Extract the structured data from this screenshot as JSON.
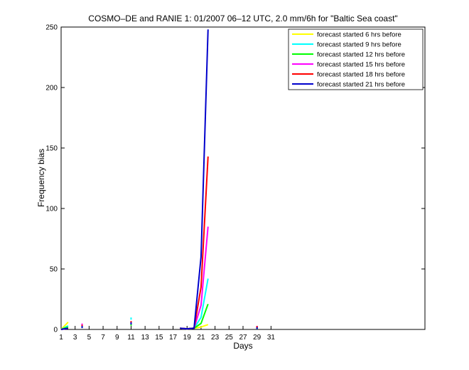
{
  "chart_data": {
    "type": "line",
    "title": "COSMO–DE and RANIE 1: 01/2007 06–12 UTC, 2.0 mm/6h for \"Baltic Sea coast\"",
    "xlabel": "Days",
    "ylabel": "Frequency bias",
    "xlim": [
      1,
      53
    ],
    "ylim": [
      0,
      250
    ],
    "x_ticks": [
      1,
      3,
      5,
      7,
      9,
      11,
      13,
      15,
      17,
      19,
      21,
      23,
      25,
      27,
      29,
      31
    ],
    "y_ticks": [
      0,
      50,
      100,
      150,
      200,
      250
    ],
    "legend_position": "top-right",
    "series": [
      {
        "name": "forecast started 6 hrs before",
        "color": "#ffff00",
        "segments": [
          [
            [
              1,
              0
            ],
            [
              2,
              6
            ]
          ],
          [
            [
              11,
              5.5
            ]
          ],
          [
            [
              18,
              1
            ],
            [
              19,
              0.5
            ],
            [
              20,
              1
            ],
            [
              21,
              2
            ],
            [
              22,
              4
            ]
          ],
          [
            [
              29,
              1
            ]
          ]
        ]
      },
      {
        "name": "forecast started 9 hrs before",
        "color": "#00ffff",
        "segments": [
          [
            [
              1,
              0
            ],
            [
              2,
              3
            ]
          ],
          [
            [
              4,
              3
            ]
          ],
          [
            [
              11,
              9
            ]
          ],
          [
            [
              18,
              1
            ],
            [
              19,
              0.5
            ],
            [
              20,
              1
            ],
            [
              21,
              10
            ],
            [
              22,
              42
            ]
          ],
          [
            [
              29,
              2
            ]
          ]
        ]
      },
      {
        "name": "forecast started 12 hrs before",
        "color": "#00ff00",
        "segments": [
          [
            [
              1,
              0
            ],
            [
              2,
              2
            ]
          ],
          [
            [
              4,
              2
            ]
          ],
          [
            [
              11,
              4
            ]
          ],
          [
            [
              18,
              1
            ],
            [
              19,
              0.5
            ],
            [
              20,
              1
            ],
            [
              21,
              5
            ],
            [
              22,
              21
            ]
          ],
          [
            [
              29,
              1
            ]
          ]
        ]
      },
      {
        "name": "forecast started 15 hrs before",
        "color": "#ff00ff",
        "segments": [
          [
            [
              1,
              0
            ],
            [
              2,
              1
            ]
          ],
          [
            [
              4,
              4
            ]
          ],
          [
            [
              11,
              6
            ]
          ],
          [
            [
              18,
              1
            ],
            [
              19,
              0.5
            ],
            [
              20,
              1
            ],
            [
              21,
              20
            ],
            [
              22,
              85
            ]
          ],
          [
            [
              29,
              2
            ]
          ]
        ]
      },
      {
        "name": "forecast started 18 hrs before",
        "color": "#ff0000",
        "segments": [
          [
            [
              1,
              0
            ],
            [
              2,
              1
            ]
          ],
          [
            [
              4,
              3
            ]
          ],
          [
            [
              11,
              6
            ]
          ],
          [
            [
              18,
              1
            ],
            [
              19,
              0.5
            ],
            [
              20,
              1
            ],
            [
              21,
              35
            ],
            [
              22,
              143
            ]
          ],
          [
            [
              29,
              2
            ]
          ]
        ]
      },
      {
        "name": "forecast started 21 hrs before",
        "color": "#0000cc",
        "segments": [
          [
            [
              1,
              0
            ],
            [
              2,
              1
            ]
          ],
          [
            [
              4,
              2
            ]
          ],
          [
            [
              11,
              5
            ]
          ],
          [
            [
              18,
              1
            ],
            [
              19,
              0.5
            ],
            [
              20,
              1
            ],
            [
              21,
              60
            ],
            [
              22,
              248
            ]
          ],
          [
            [
              29,
              1
            ]
          ]
        ]
      }
    ]
  }
}
